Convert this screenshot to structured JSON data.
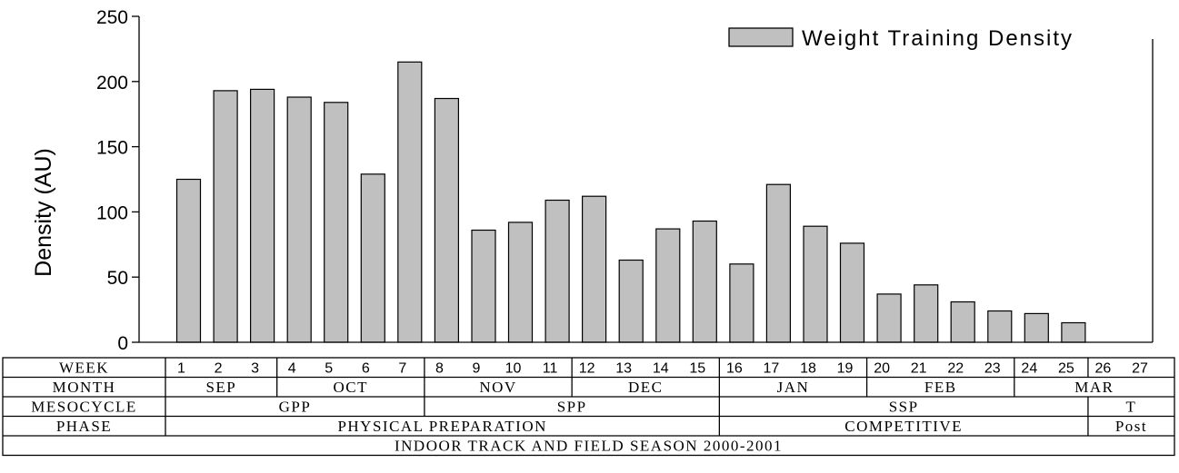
{
  "chart_data": {
    "type": "bar",
    "ylabel": "Density (AU)",
    "ylim": [
      0,
      250
    ],
    "yticks": [
      "0",
      "50",
      "100",
      "150",
      "200",
      "250"
    ],
    "legend": {
      "label": "Weight Training Density",
      "position": "top-right"
    },
    "bar_color": "#c0c0c0",
    "categories": [
      "1",
      "2",
      "3",
      "4",
      "5",
      "6",
      "7",
      "8",
      "9",
      "10",
      "11",
      "12",
      "13",
      "14",
      "15",
      "16",
      "17",
      "18",
      "19",
      "20",
      "21",
      "22",
      "23",
      "24",
      "25",
      "26",
      "27"
    ],
    "series": [
      {
        "name": "Weight Training Density",
        "values": [
          125,
          193,
          194,
          188,
          184,
          129,
          215,
          187,
          86,
          92,
          109,
          112,
          63,
          87,
          93,
          60,
          121,
          89,
          76,
          37,
          44,
          31,
          24,
          22,
          15,
          null,
          null
        ]
      }
    ]
  },
  "table": {
    "rows": [
      {
        "header": "WEEK",
        "key": "week"
      },
      {
        "header": "MONTH",
        "key": "month",
        "cells": [
          {
            "label": "SEP",
            "start": 1,
            "end": 3
          },
          {
            "label": "OCT",
            "start": 4,
            "end": 7
          },
          {
            "label": "NOV",
            "start": 8,
            "end": 11
          },
          {
            "label": "DEC",
            "start": 12,
            "end": 15
          },
          {
            "label": "JAN",
            "start": 16,
            "end": 19
          },
          {
            "label": "FEB",
            "start": 20,
            "end": 23
          },
          {
            "label": "MAR",
            "start": 24,
            "end": 27
          }
        ]
      },
      {
        "header": "MESOCYCLE",
        "key": "mesocycle",
        "cells": [
          {
            "label": "GPP",
            "start": 1,
            "end": 7
          },
          {
            "label": "SPP",
            "start": 8,
            "end": 15
          },
          {
            "label": "SSP",
            "start": 16,
            "end": 25
          },
          {
            "label": "T",
            "start": 26,
            "end": 27
          }
        ]
      },
      {
        "header": "PHASE",
        "key": "phase",
        "cells": [
          {
            "label": "PHYSICAL PREPARATION",
            "start": 1,
            "end": 15
          },
          {
            "label": "COMPETITIVE",
            "start": 16,
            "end": 25
          },
          {
            "label": "Post",
            "start": 26,
            "end": 27
          }
        ]
      }
    ],
    "week_groups": [
      [
        1,
        3
      ],
      [
        4,
        7
      ],
      [
        8,
        11
      ],
      [
        12,
        15
      ],
      [
        16,
        19
      ],
      [
        20,
        23
      ],
      [
        24,
        25
      ],
      [
        26,
        27
      ]
    ],
    "footer": "INDOOR TRACK AND FIELD SEASON 2000-2001"
  }
}
